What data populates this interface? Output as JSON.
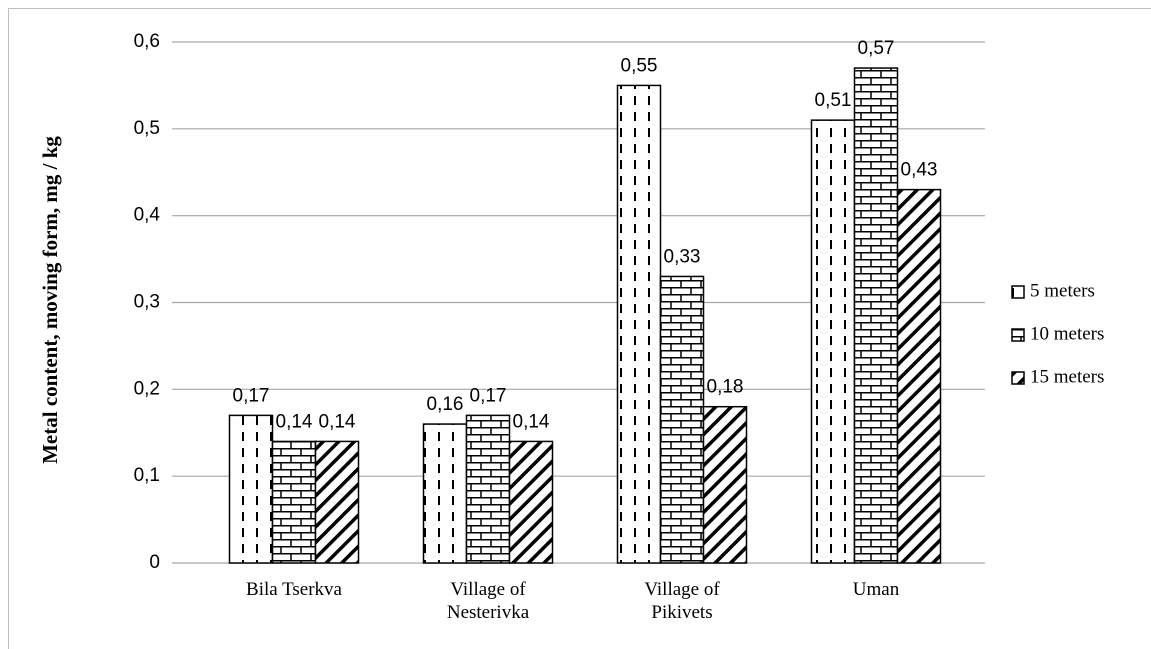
{
  "chart_data": {
    "type": "bar",
    "y_label": "Metal content, moving form, mg / kg",
    "categories": [
      "Bila Tserkva",
      "Village of Nesterivka",
      "Village of Pikivets",
      "Uman"
    ],
    "series": [
      {
        "name": "5 meters",
        "color": "#000000",
        "pattern": "dashed-vertical",
        "values": [
          0.17,
          0.16,
          0.55,
          0.51
        ],
        "value_labels": [
          "0,17",
          "0,16",
          "0,55",
          "0,51"
        ]
      },
      {
        "name": "10 meters",
        "color": "#000000",
        "pattern": "brick",
        "values": [
          0.14,
          0.17,
          0.33,
          0.57
        ],
        "value_labels": [
          "0,14",
          "0,17",
          "0,33",
          "0,57"
        ]
      },
      {
        "name": "15 meters",
        "color": "#000000",
        "pattern": "diagonal",
        "values": [
          0.14,
          0.14,
          0.18,
          0.43
        ],
        "value_labels": [
          "0,14",
          "0,14",
          "0,18",
          "0,43"
        ]
      }
    ],
    "ylim": [
      0,
      0.6
    ],
    "yticks": [
      0,
      {
        "value": 0.1,
        "label": "0,1"
      },
      {
        "value": 0.2,
        "label": "0,2"
      },
      {
        "value": 0.3,
        "label": "0,3"
      },
      {
        "value": 0.4,
        "label": "0,4"
      },
      {
        "value": 0.5,
        "label": "0,5"
      },
      {
        "value": 0.6,
        "label": "0,6"
      }
    ],
    "grid": true,
    "legend": "right"
  }
}
